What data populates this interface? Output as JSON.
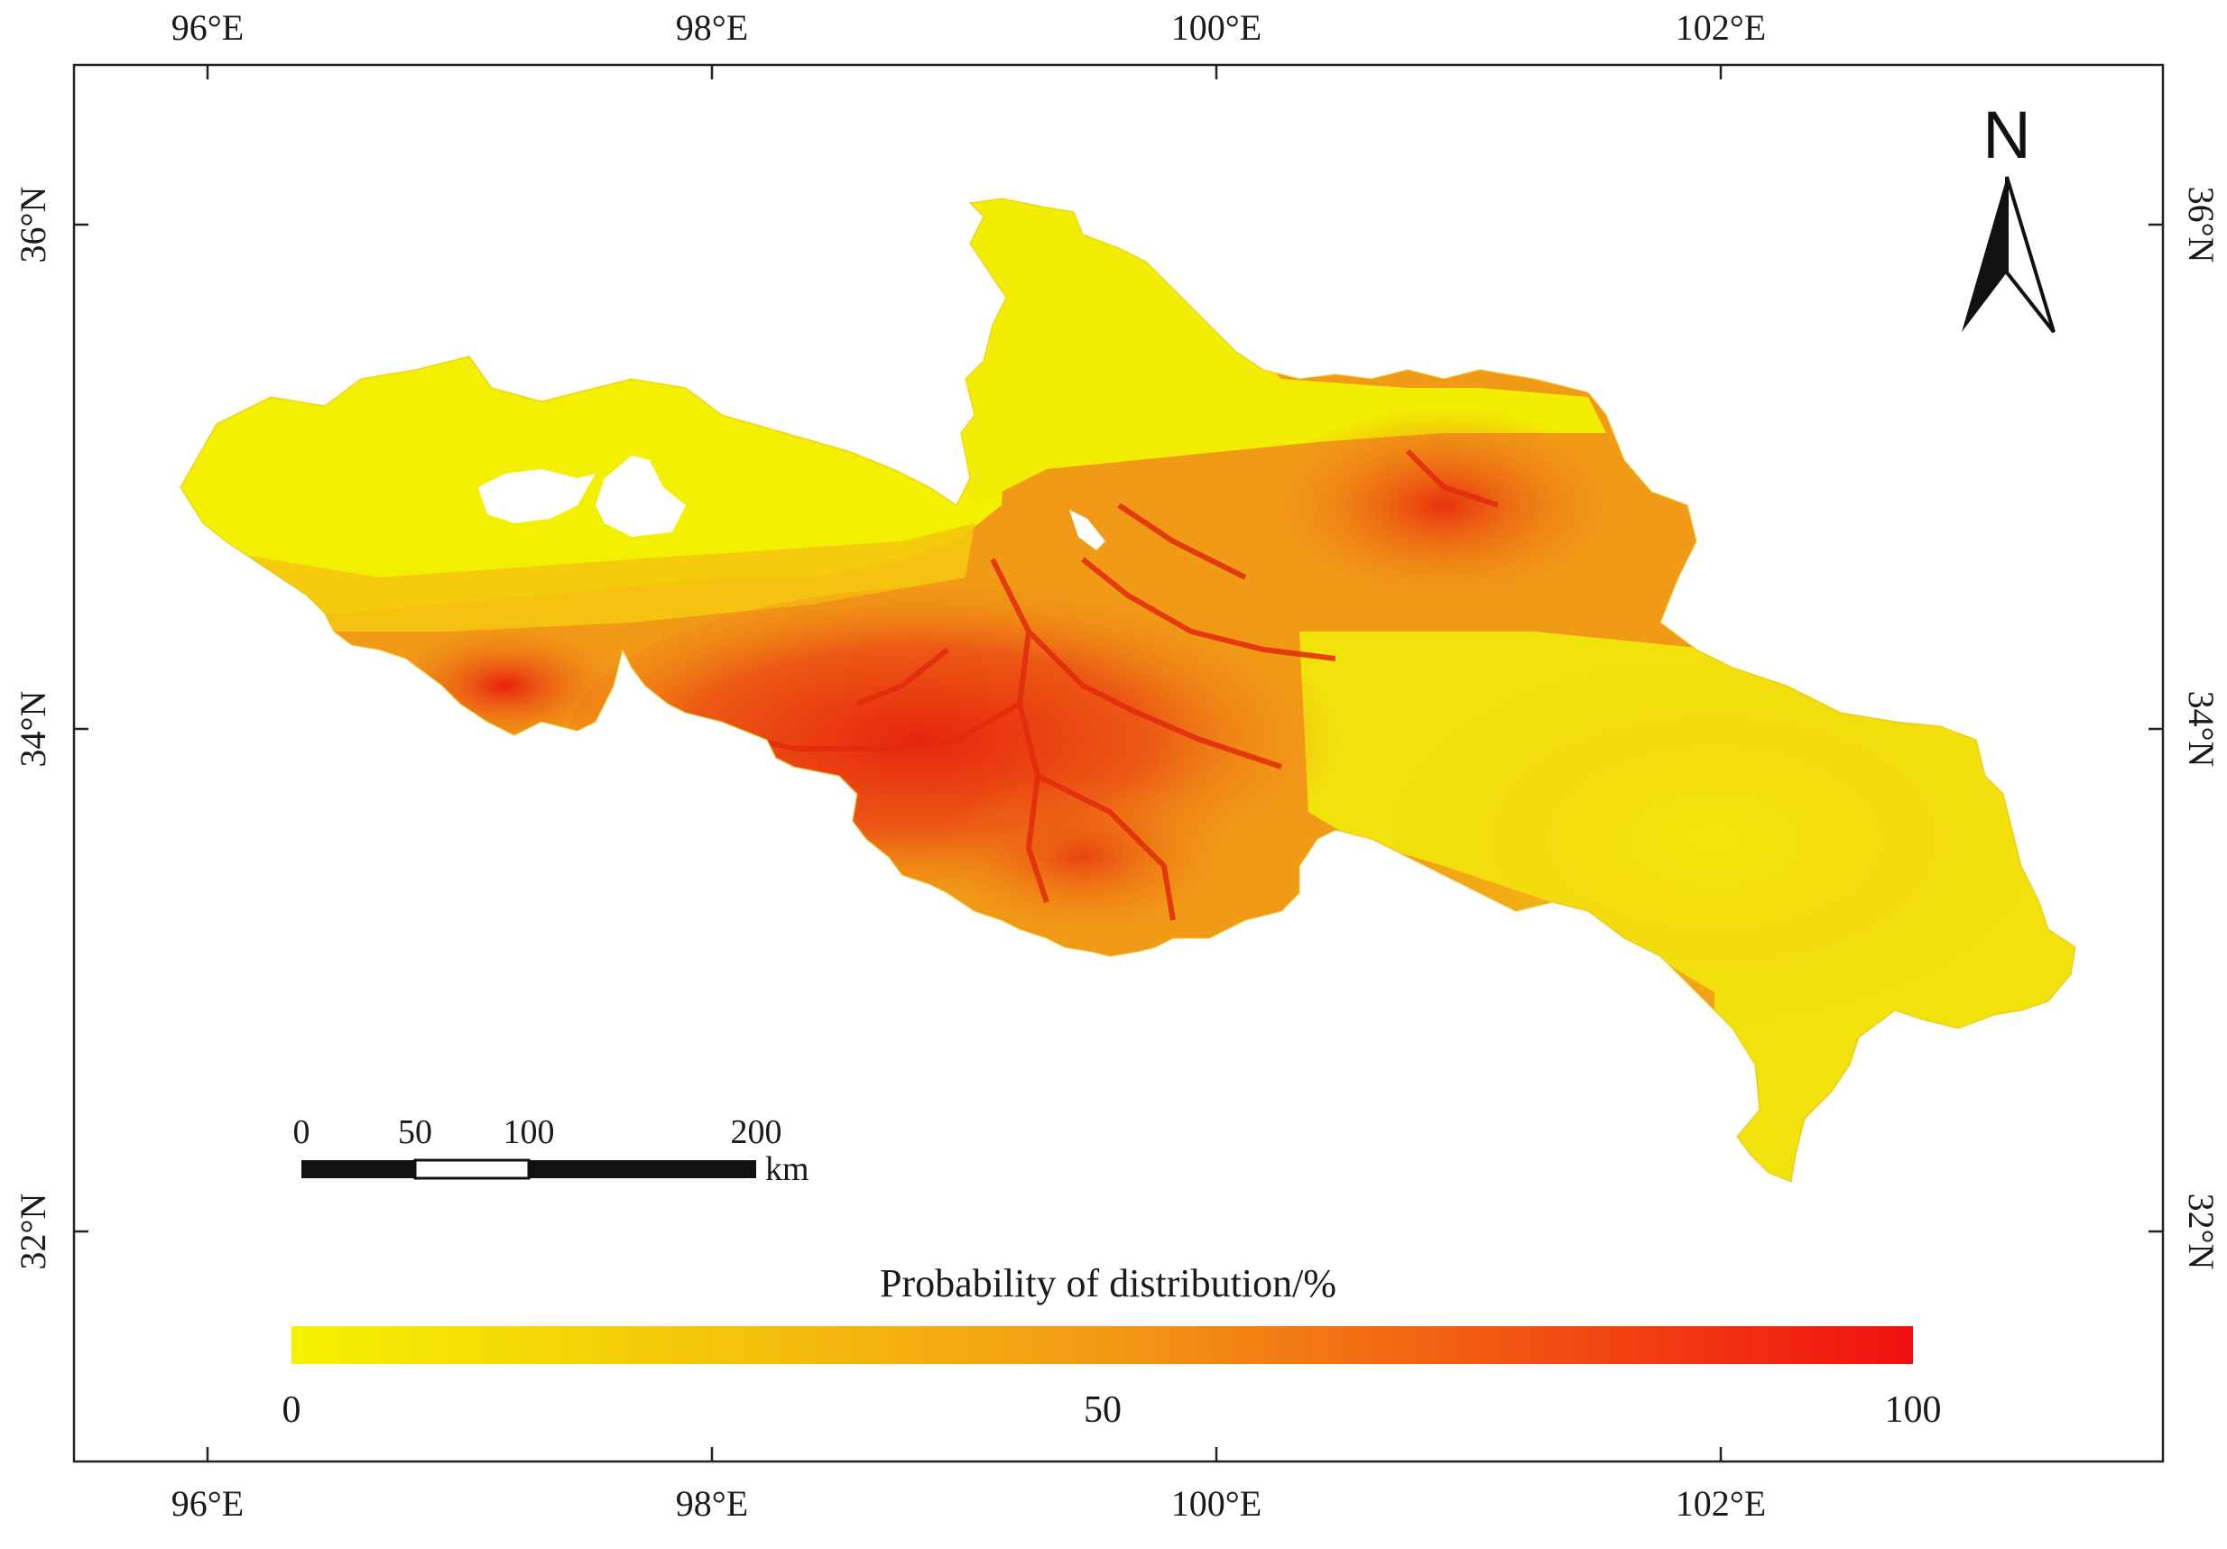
{
  "map": {
    "lon_ticks": [
      "96°E",
      "98°E",
      "100°E",
      "102°E"
    ],
    "lat_ticks": [
      "36°N",
      "34°N",
      "32°N"
    ],
    "north_arrow": {
      "label": "N",
      "icon": "north-arrow-icon"
    },
    "scale_bar": {
      "labels": [
        "0",
        "50",
        "100",
        "200"
      ],
      "unit": "km"
    },
    "legend": {
      "title": "Probability of distribution/%",
      "ticks": [
        "0",
        "50",
        "100"
      ],
      "color_low": "#f5f200",
      "color_mid": "#f39a14",
      "color_high": "#f01010"
    },
    "colors": {
      "frame": "#222222",
      "region_low": "#f3ef00",
      "region_mid": "#f19a17",
      "region_high": "#ea3512"
    }
  }
}
